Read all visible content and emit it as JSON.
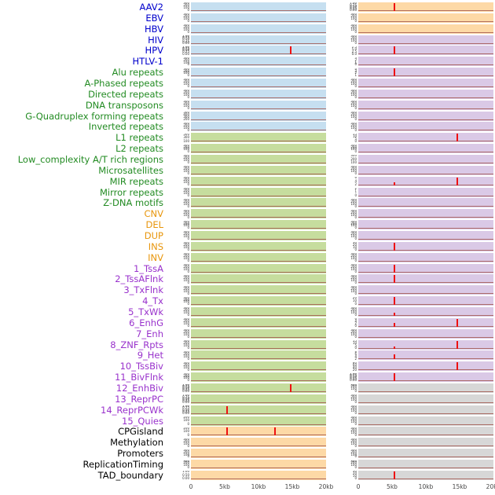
{
  "chart_data": {
    "type": "line",
    "title": "",
    "description": "Small-multiple genomic annotation tracks over a 0-20kb window; two panel columns per feature with red signal spikes at enriched positions",
    "x_ticks": [
      "0",
      "5kb",
      "10kb",
      "15kb",
      "20kb"
    ],
    "x_range_kb": [
      0,
      20
    ],
    "default_ticks": [
      "300",
      "200",
      "100",
      "0"
    ],
    "colors": {
      "labels": {
        "virus": "#0000cc",
        "repeat": "#228b22",
        "sv": "#e8960c",
        "chromatin": "#9932cc",
        "other": "#000000"
      },
      "panels": {
        "blue": "#c6dff0",
        "green": "#c6dd9e",
        "orange": "#fdd9a6",
        "purple": "#dac9e6",
        "gray": "#d7d7d7"
      },
      "spike": "#ee1111",
      "baseline": "#a0524b",
      "axis_text": "#444444"
    },
    "rows": [
      {
        "label": "AAV2",
        "group": "virus",
        "left": {
          "bg": "blue"
        },
        "right": {
          "bg": "orange",
          "ticks": [
            "1.00",
            "0.75",
            "0.50",
            "0.25",
            "0.00"
          ],
          "spikes": [
            {
              "x": 0.27,
              "h": 1
            }
          ]
        }
      },
      {
        "label": "EBV",
        "group": "virus",
        "left": {
          "bg": "blue"
        },
        "right": {
          "bg": "orange"
        }
      },
      {
        "label": "HBV",
        "group": "virus",
        "left": {
          "bg": "blue"
        },
        "right": {
          "bg": "orange"
        }
      },
      {
        "label": "HIV",
        "group": "virus",
        "left": {
          "bg": "blue",
          "ticks": [
            "1.00",
            "0.75",
            "0.50",
            "0.25",
            "0.00"
          ]
        },
        "right": {
          "bg": "purple"
        }
      },
      {
        "label": "HPV",
        "group": "virus",
        "left": {
          "bg": "blue",
          "ticks": [
            "1.00",
            "0.75",
            "0.50",
            "0.25",
            "0.00"
          ],
          "spikes": [
            {
              "x": 0.74,
              "h": 1
            }
          ]
        },
        "right": {
          "bg": "purple",
          "ticks": [
            "7.5",
            "5.0",
            "2.5",
            "0.0"
          ],
          "spikes": [
            {
              "x": 0.27,
              "h": 1
            }
          ]
        }
      },
      {
        "label": "HTLV-1",
        "group": "virus",
        "left": {
          "bg": "blue"
        },
        "right": {
          "bg": "purple",
          "ticks": [
            "3",
            "2",
            "1",
            "0"
          ]
        }
      },
      {
        "label": "Alu repeats",
        "group": "repeat",
        "left": {
          "bg": "blue"
        },
        "right": {
          "bg": "purple",
          "ticks": [
            "4",
            "3",
            "2",
            "1"
          ],
          "spikes": [
            {
              "x": 0.27,
              "h": 1
            }
          ]
        }
      },
      {
        "label": "A-Phased repeats",
        "group": "repeat",
        "left": {
          "bg": "blue"
        },
        "right": {
          "bg": "purple"
        }
      },
      {
        "label": "Directed repeats",
        "group": "repeat",
        "left": {
          "bg": "blue"
        },
        "right": {
          "bg": "purple"
        }
      },
      {
        "label": "DNA transposons",
        "group": "repeat",
        "left": {
          "bg": "blue"
        },
        "right": {
          "bg": "purple"
        }
      },
      {
        "label": "G-Quadruplex forming repeats",
        "group": "repeat",
        "left": {
          "bg": "blue",
          "ticks": [
            "500",
            "400",
            "300",
            "200"
          ]
        },
        "right": {
          "bg": "purple"
        }
      },
      {
        "label": "Inverted repeats",
        "group": "repeat",
        "left": {
          "bg": "blue"
        },
        "right": {
          "bg": "purple"
        }
      },
      {
        "label": "L1 repeats",
        "group": "repeat",
        "left": {
          "bg": "green",
          "ticks": [
            "500",
            "300",
            "100"
          ]
        },
        "right": {
          "bg": "purple",
          "ticks": [
            "15",
            "10",
            "5",
            "0"
          ],
          "spikes": [
            {
              "x": 0.73,
              "h": 1
            }
          ]
        }
      },
      {
        "label": "L2 repeats",
        "group": "repeat",
        "left": {
          "bg": "green"
        },
        "right": {
          "bg": "purple"
        }
      },
      {
        "label": "Low_complexity A/T rich regions",
        "group": "repeat",
        "left": {
          "bg": "green"
        },
        "right": {
          "bg": "purple",
          "ticks": [
            "300",
            "200",
            "100"
          ]
        }
      },
      {
        "label": "Microsatellites",
        "group": "repeat",
        "left": {
          "bg": "green"
        },
        "right": {
          "bg": "purple"
        }
      },
      {
        "label": "MIR repeats",
        "group": "repeat",
        "left": {
          "bg": "green"
        },
        "right": {
          "bg": "purple",
          "ticks": [
            "6",
            "4",
            "2"
          ],
          "spikes": [
            {
              "x": 0.27,
              "h": 0.35
            },
            {
              "x": 0.73,
              "h": 1
            }
          ]
        }
      },
      {
        "label": "Mirror repeats",
        "group": "repeat",
        "left": {
          "bg": "green"
        },
        "right": {
          "bg": "purple",
          "ticks": [
            "2",
            "1",
            "0"
          ]
        }
      },
      {
        "label": "Z-DNA motifs",
        "group": "repeat",
        "left": {
          "bg": "green"
        },
        "right": {
          "bg": "purple"
        }
      },
      {
        "label": "CNV",
        "group": "sv",
        "left": {
          "bg": "green"
        },
        "right": {
          "bg": "purple"
        }
      },
      {
        "label": "DEL",
        "group": "sv",
        "left": {
          "bg": "green"
        },
        "right": {
          "bg": "purple"
        }
      },
      {
        "label": "DUP",
        "group": "sv",
        "left": {
          "bg": "green"
        },
        "right": {
          "bg": "purple"
        }
      },
      {
        "label": "INS",
        "group": "sv",
        "left": {
          "bg": "green"
        },
        "right": {
          "bg": "purple",
          "ticks": [
            "30",
            "20",
            "10",
            "0"
          ],
          "spikes": [
            {
              "x": 0.27,
              "h": 1
            }
          ]
        }
      },
      {
        "label": "INV",
        "group": "sv",
        "left": {
          "bg": "green"
        },
        "right": {
          "bg": "purple"
        }
      },
      {
        "label": "1_TssA",
        "group": "chromatin",
        "left": {
          "bg": "green"
        },
        "right": {
          "bg": "purple",
          "spikes": [
            {
              "x": 0.27,
              "h": 1
            }
          ]
        }
      },
      {
        "label": "2_TssAFlnk",
        "group": "chromatin",
        "left": {
          "bg": "green"
        },
        "right": {
          "bg": "purple",
          "spikes": [
            {
              "x": 0.27,
              "h": 1
            }
          ]
        }
      },
      {
        "label": "3_TxFlnk",
        "group": "chromatin",
        "left": {
          "bg": "green"
        },
        "right": {
          "bg": "purple"
        }
      },
      {
        "label": "4_Tx",
        "group": "chromatin",
        "left": {
          "bg": "green"
        },
        "right": {
          "bg": "purple",
          "ticks": [
            "20",
            "10",
            "0"
          ],
          "spikes": [
            {
              "x": 0.27,
              "h": 1
            }
          ]
        }
      },
      {
        "label": "5_TxWk",
        "group": "chromatin",
        "left": {
          "bg": "green"
        },
        "right": {
          "bg": "purple",
          "spikes": [
            {
              "x": 0.27,
              "h": 0.4
            }
          ]
        }
      },
      {
        "label": "6_EnhG",
        "group": "chromatin",
        "left": {
          "bg": "green"
        },
        "right": {
          "bg": "purple",
          "ticks": [
            "6",
            "4",
            "2",
            "0"
          ],
          "spikes": [
            {
              "x": 0.27,
              "h": 0.5
            },
            {
              "x": 0.73,
              "h": 1
            }
          ]
        }
      },
      {
        "label": "7_Enh",
        "group": "chromatin",
        "left": {
          "bg": "green"
        },
        "right": {
          "bg": "purple"
        }
      },
      {
        "label": "8_ZNF_Rpts",
        "group": "chromatin",
        "left": {
          "bg": "green"
        },
        "right": {
          "bg": "purple",
          "ticks": [
            "15",
            "10",
            "5",
            "0"
          ],
          "spikes": [
            {
              "x": 0.27,
              "h": 0.3
            },
            {
              "x": 0.73,
              "h": 1
            }
          ]
        }
      },
      {
        "label": "9_Het",
        "group": "chromatin",
        "left": {
          "bg": "green"
        },
        "right": {
          "bg": "purple",
          "ticks": [
            "8",
            "6",
            "4",
            "2"
          ],
          "spikes": [
            {
              "x": 0.27,
              "h": 0.6
            }
          ]
        }
      },
      {
        "label": "10_TssBiv",
        "group": "chromatin",
        "left": {
          "bg": "green"
        },
        "right": {
          "bg": "purple",
          "ticks": [
            "80",
            "60",
            "40",
            "20"
          ],
          "spikes": [
            {
              "x": 0.73,
              "h": 1
            }
          ]
        }
      },
      {
        "label": "11_BivFlnk",
        "group": "chromatin",
        "left": {
          "bg": "green"
        },
        "right": {
          "bg": "purple",
          "ticks": [
            "1.00",
            "0.75",
            "0.50",
            "0.25",
            "0.00"
          ],
          "spikes": [
            {
              "x": 0.27,
              "h": 1
            }
          ]
        }
      },
      {
        "label": "12_EnhBiv",
        "group": "chromatin",
        "left": {
          "bg": "green",
          "ticks": [
            "1.00",
            "0.75",
            "0.50",
            "0.25",
            "0.00"
          ],
          "spikes": [
            {
              "x": 0.74,
              "h": 1
            }
          ]
        },
        "right": {
          "bg": "gray"
        }
      },
      {
        "label": "13_ReprPC",
        "group": "chromatin",
        "left": {
          "bg": "green",
          "ticks": [
            "1.00",
            "0.75",
            "0.50",
            "0.25",
            "0.00"
          ]
        },
        "right": {
          "bg": "gray"
        }
      },
      {
        "label": "14_ReprPCWk",
        "group": "chromatin",
        "left": {
          "bg": "green",
          "ticks": [
            "1.00",
            "0.75",
            "0.50",
            "0.25",
            "0.00"
          ],
          "spikes": [
            {
              "x": 0.27,
              "h": 1
            }
          ]
        },
        "right": {
          "bg": "gray"
        }
      },
      {
        "label": "15_Quies",
        "group": "chromatin",
        "left": {
          "bg": "green",
          "ticks": [
            "200",
            "100",
            "0"
          ]
        },
        "right": {
          "bg": "gray"
        }
      },
      {
        "label": "CPGisland",
        "group": "other",
        "left": {
          "bg": "orange",
          "ticks": [
            "200",
            "100",
            "0"
          ],
          "spikes": [
            {
              "x": 0.27,
              "h": 1
            },
            {
              "x": 0.62,
              "h": 1
            }
          ]
        },
        "right": {
          "bg": "gray"
        }
      },
      {
        "label": "Methylation",
        "group": "other",
        "left": {
          "bg": "orange"
        },
        "right": {
          "bg": "gray"
        }
      },
      {
        "label": "Promoters",
        "group": "other",
        "left": {
          "bg": "orange"
        },
        "right": {
          "bg": "gray"
        }
      },
      {
        "label": "ReplicationTiming",
        "group": "other",
        "left": {
          "bg": "orange"
        },
        "right": {
          "bg": "gray"
        }
      },
      {
        "label": "TAD_boundary",
        "group": "other",
        "left": {
          "bg": "orange",
          "ticks": [
            "1.00",
            "0.50",
            "0.00"
          ]
        },
        "right": {
          "bg": "gray",
          "ticks": [
            "30",
            "20",
            "10",
            "0"
          ],
          "spikes": [
            {
              "x": 0.27,
              "h": 1
            }
          ]
        }
      }
    ]
  }
}
